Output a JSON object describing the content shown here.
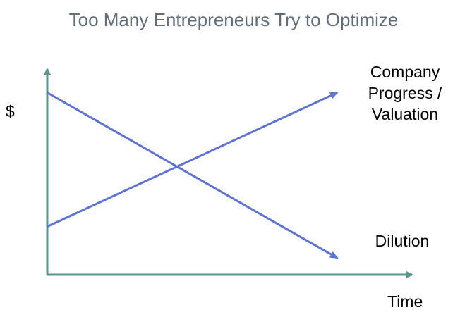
{
  "chart_data": {
    "type": "line",
    "title": "Too Many Entrepreneurs Try to Optimize",
    "ylabel": "$",
    "xlabel": "Time",
    "x": [
      0,
      1
    ],
    "ylim": [
      0,
      1
    ],
    "grid": false,
    "series": [
      {
        "name": "Company Progress / Valuation",
        "label_lines": [
          "Company",
          "Progress /",
          "Valuation"
        ],
        "values": [
          0.2,
          0.84
        ],
        "color": "#5b72d6"
      },
      {
        "name": "Dilution",
        "label_lines": [
          "Dilution"
        ],
        "values": [
          0.84,
          0.05
        ],
        "color": "#5b72d6"
      }
    ],
    "axis_color": "#5a9590"
  }
}
